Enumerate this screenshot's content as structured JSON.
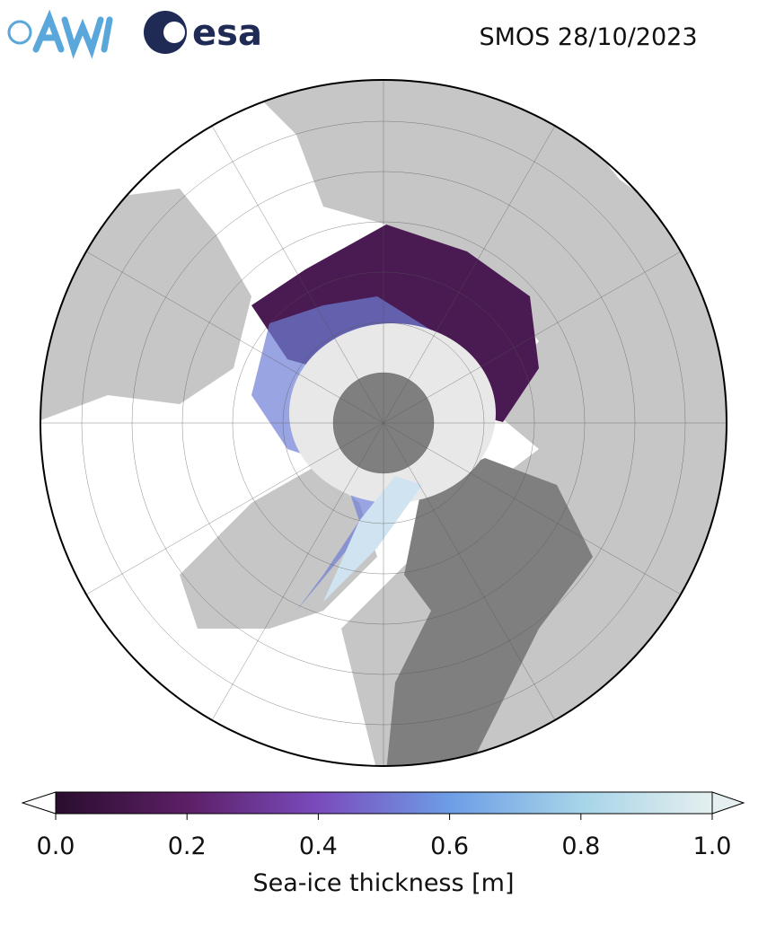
{
  "header": {
    "title": "SMOS 28/10/2023",
    "logo_text": "esa"
  },
  "colorbar": {
    "label": "Sea-ice thickness [m]",
    "lim": [
      0,
      1
    ],
    "ticks": [
      {
        "value": 0,
        "label": "0.0"
      },
      0.2,
      0.4,
      0.6,
      0.8,
      {
        "value": 1,
        "label": "1.0"
      }
    ]
  }
}
